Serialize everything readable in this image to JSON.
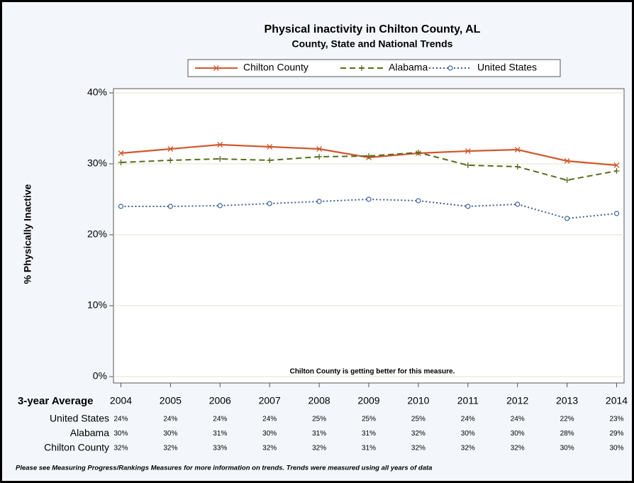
{
  "chart_data": {
    "type": "line",
    "title": "Physical inactivity in Chilton County, AL",
    "subtitle": "County, State and National Trends",
    "ylabel": "% Physically Inactive",
    "x": [
      2004,
      2005,
      2006,
      2007,
      2008,
      2009,
      2010,
      2011,
      2012,
      2013,
      2014
    ],
    "xlim": [
      2003.85,
      2014.15
    ],
    "ylim": [
      -0.9,
      40.6
    ],
    "yticks": [
      {
        "value": 0,
        "label": "0%"
      },
      {
        "value": 10,
        "label": "10%"
      },
      {
        "value": 20,
        "label": "20%"
      },
      {
        "value": 30,
        "label": "30%"
      },
      {
        "value": 40,
        "label": "40%"
      }
    ],
    "grid": true,
    "legend": "top",
    "annotation": "Chilton County is getting better for this measure.",
    "series": [
      {
        "name": "Chilton County",
        "color": "#d0582e",
        "marker": "x",
        "dash": "solid",
        "values": [
          31.5,
          32.1,
          32.7,
          32.4,
          32.1,
          30.9,
          31.5,
          31.8,
          32.0,
          30.4,
          29.8
        ]
      },
      {
        "name": "Alabama",
        "color": "#566d1c",
        "marker": "+",
        "dash": "dashed",
        "values": [
          30.2,
          30.5,
          30.7,
          30.5,
          31.0,
          31.1,
          31.6,
          29.8,
          29.6,
          27.7,
          29.0
        ]
      },
      {
        "name": "United States",
        "color": "#3b5f97",
        "marker": "o",
        "dash": "dotted",
        "values": [
          24.0,
          24.0,
          24.1,
          24.4,
          24.7,
          25.0,
          24.8,
          24.0,
          24.3,
          22.3,
          23.0
        ]
      }
    ],
    "table": {
      "title": "3-year Average",
      "rows": [
        {
          "name": "United States",
          "values": [
            "24%",
            "24%",
            "24%",
            "24%",
            "25%",
            "25%",
            "25%",
            "24%",
            "24%",
            "22%",
            "23%"
          ]
        },
        {
          "name": "Alabama",
          "values": [
            "30%",
            "30%",
            "31%",
            "30%",
            "31%",
            "31%",
            "32%",
            "30%",
            "30%",
            "28%",
            "29%"
          ]
        },
        {
          "name": "Chilton County",
          "values": [
            "32%",
            "32%",
            "33%",
            "32%",
            "32%",
            "31%",
            "32%",
            "32%",
            "32%",
            "30%",
            "30%"
          ]
        }
      ]
    },
    "footnote": "Please see Measuring Progress/Rankings Measures for more information on trends. Trends were measured using all years of data"
  }
}
